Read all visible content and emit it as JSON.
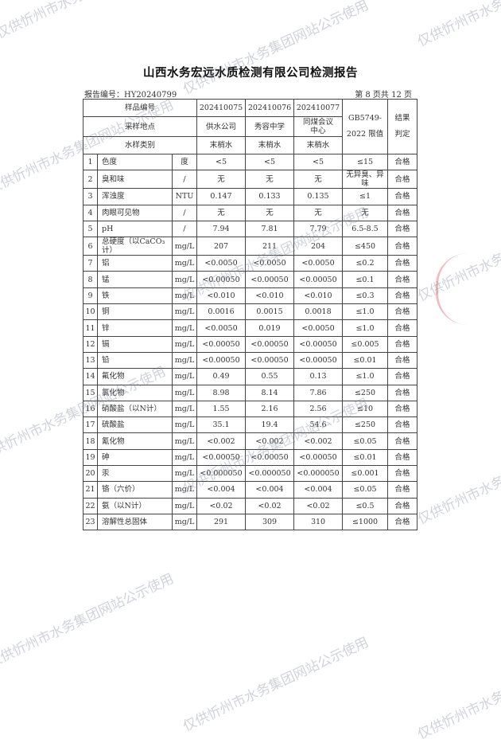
{
  "title": "山西水务宏远水质检测有限公司检测报告",
  "report_no": "报告编号：HY20240799",
  "page_info": "第 8 页共 12 页",
  "header": {
    "sample_no_label": "样品编号",
    "site_label": "采样地点",
    "type_label": "水样类别",
    "samples": [
      {
        "no": "202410075",
        "site": "供水公司",
        "type": "末梢水"
      },
      {
        "no": "202410076",
        "site": "秀容中学",
        "type": "末梢水"
      },
      {
        "no": "202410077",
        "site": "同煤会议中心",
        "type": "末梢水"
      }
    ],
    "limit_label": "GB5749-2022 限值",
    "result_label": "结果判定"
  },
  "rows": [
    {
      "n": "1",
      "item": "色度",
      "unit": "度",
      "v": [
        "<5",
        "<5",
        "<5"
      ],
      "limit": "≤15",
      "res": "合格"
    },
    {
      "n": "2",
      "item": "臭和味",
      "unit": "/",
      "v": [
        "无",
        "无",
        "无"
      ],
      "limit": "无异臭、异味",
      "res": "合格"
    },
    {
      "n": "3",
      "item": "浑浊度",
      "unit": "NTU",
      "v": [
        "0.147",
        "0.133",
        "0.135"
      ],
      "limit": "≤1",
      "res": "合格"
    },
    {
      "n": "4",
      "item": "肉眼可见物",
      "unit": "/",
      "v": [
        "无",
        "无",
        "无"
      ],
      "limit": "无",
      "res": "合格"
    },
    {
      "n": "5",
      "item": "pH",
      "unit": "/",
      "v": [
        "7.94",
        "7.81",
        "7.79"
      ],
      "limit": "6.5-8.5",
      "res": "合格"
    },
    {
      "n": "6",
      "item": "总硬度（以CaCO₃计）",
      "unit": "mg/L",
      "v": [
        "207",
        "211",
        "204"
      ],
      "limit": "≤450",
      "res": "合格"
    },
    {
      "n": "7",
      "item": "铝",
      "unit": "mg/L",
      "v": [
        "<0.0050",
        "<0.0050",
        "<0.0050"
      ],
      "limit": "≤0.2",
      "res": "合格"
    },
    {
      "n": "8",
      "item": "锰",
      "unit": "mg/L",
      "v": [
        "<0.00050",
        "<0.00050",
        "<0.00050"
      ],
      "limit": "≤0.1",
      "res": "合格"
    },
    {
      "n": "9",
      "item": "铁",
      "unit": "mg/L",
      "v": [
        "<0.010",
        "<0.010",
        "<0.010"
      ],
      "limit": "≤0.3",
      "res": "合格"
    },
    {
      "n": "10",
      "item": "铜",
      "unit": "mg/L",
      "v": [
        "0.0016",
        "0.0015",
        "0.0018"
      ],
      "limit": "≤1.0",
      "res": "合格"
    },
    {
      "n": "11",
      "item": "锌",
      "unit": "mg/L",
      "v": [
        "<0.0050",
        "0.019",
        "<0.0050"
      ],
      "limit": "≤1.0",
      "res": "合格"
    },
    {
      "n": "12",
      "item": "镉",
      "unit": "mg/L",
      "v": [
        "<0.00050",
        "<0.00050",
        "<0.00050"
      ],
      "limit": "≤0.005",
      "res": "合格"
    },
    {
      "n": "13",
      "item": "铅",
      "unit": "mg/L",
      "v": [
        "<0.00050",
        "<0.00050",
        "<0.00050"
      ],
      "limit": "≤0.01",
      "res": "合格"
    },
    {
      "n": "14",
      "item": "氟化物",
      "unit": "mg/L",
      "v": [
        "0.49",
        "0.55",
        "0.13"
      ],
      "limit": "≤1.0",
      "res": "合格"
    },
    {
      "n": "15",
      "item": "氯化物",
      "unit": "mg/L",
      "v": [
        "8.98",
        "8.14",
        "7.86"
      ],
      "limit": "≤250",
      "res": "合格"
    },
    {
      "n": "16",
      "item": "硝酸盐（以N计）",
      "unit": "mg/L",
      "v": [
        "1.55",
        "2.16",
        "2.56"
      ],
      "limit": "≤10",
      "res": "合格"
    },
    {
      "n": "17",
      "item": "硫酸盐",
      "unit": "mg/L",
      "v": [
        "35.1",
        "19.4",
        "54.6"
      ],
      "limit": "≤250",
      "res": "合格"
    },
    {
      "n": "18",
      "item": "氰化物",
      "unit": "mg/L",
      "v": [
        "<0.002",
        "<0.002",
        "<0.002"
      ],
      "limit": "≤0.05",
      "res": "合格"
    },
    {
      "n": "19",
      "item": "砷",
      "unit": "mg/L",
      "v": [
        "<0.00050",
        "<0.00050",
        "<0.00050"
      ],
      "limit": "≤0.01",
      "res": "合格"
    },
    {
      "n": "20",
      "item": "汞",
      "unit": "mg/L",
      "v": [
        "<0.000050",
        "<0.000050",
        "<0.000050"
      ],
      "limit": "≤0.001",
      "res": "合格"
    },
    {
      "n": "21",
      "item": "铬（六价）",
      "unit": "mg/L",
      "v": [
        "<0.004",
        "<0.004",
        "<0.004"
      ],
      "limit": "≤0.05",
      "res": "合格"
    },
    {
      "n": "22",
      "item": "氨（以N计）",
      "unit": "mg/L",
      "v": [
        "<0.02",
        "<0.02",
        "<0.02"
      ],
      "limit": "≤0.5",
      "res": "合格"
    },
    {
      "n": "23",
      "item": "溶解性总固体",
      "unit": "mg/L",
      "v": [
        "291",
        "309",
        "310"
      ],
      "limit": "≤1000",
      "res": "合格"
    }
  ],
  "watermark": "仅供忻州市水务集团网站公示使用"
}
